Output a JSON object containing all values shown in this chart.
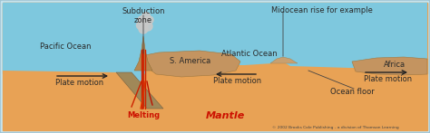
{
  "bg_color": "#c5e4ef",
  "border_color": "#a0c4d4",
  "ocean_color": "#7ec8de",
  "land_color": "#e8a255",
  "continent_color": "#c49460",
  "subduction_slab_color": "#b08855",
  "midocean_color": "#c49a65",
  "volcano_color": "#c09060",
  "smoke_color": "#c8c8c8",
  "arrow_color": "#222222",
  "text_color": "#2a2a2a",
  "red_text": "#cc1100",
  "copyright_color": "#444444",
  "title_subduction": "Subduction\nzone",
  "title_midocean": "Midocean rise for example",
  "label_pacific": "Pacific Ocean",
  "label_atlantic": "Atlantic Ocean",
  "label_s_america": "S. America",
  "label_africa": "Africa",
  "label_plate1": "Plate motion",
  "label_plate2": "Plate motion",
  "label_plate3": "Plate motion",
  "label_melting": "Melting",
  "label_mantle": "Mantle",
  "label_ocean_floor": "Ocean floor",
  "copyright": "© 2002 Brooks Cole Publishing - a division of Thomson Learning",
  "figsize": [
    4.74,
    1.47
  ],
  "dpi": 100
}
